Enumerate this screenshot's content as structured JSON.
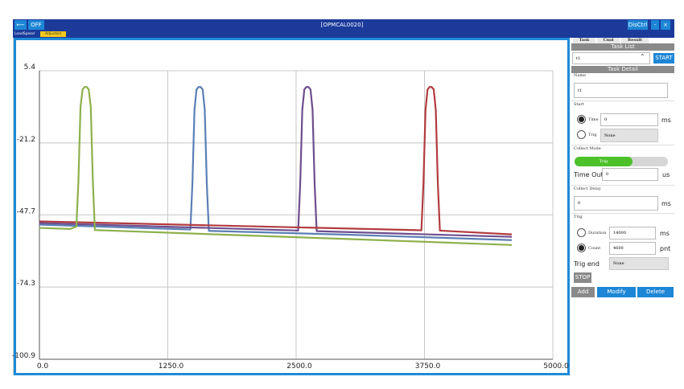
{
  "window": {
    "title": "[OPMCAL0020]",
    "power": "OFF",
    "disctrl": "DisCtrl",
    "minimize": "-",
    "close": "×"
  },
  "toolbar": {
    "tabs": [
      "LoadSpeed",
      "Adjusted"
    ]
  },
  "chart_data": {
    "type": "line",
    "xlim": [
      0,
      5000
    ],
    "xticks": [
      {
        "value": 0,
        "label": "0.0"
      },
      {
        "value": 1250,
        "label": "1250.0"
      },
      {
        "value": 2500,
        "label": "2500.0"
      },
      {
        "value": 3750,
        "label": "3750.0"
      },
      {
        "value": 5000,
        "label": "5000.0"
      }
    ],
    "ylim": [
      -100.9,
      5.4
    ],
    "yticks": [
      5.4,
      -21.2,
      -47.7,
      -74.3,
      -100.9
    ],
    "grid": true,
    "series": [
      {
        "color": "#5b7fb5",
        "x": [
          0,
          1400,
          1470,
          1490,
          1510,
          1530,
          1550,
          1570,
          1590,
          1610,
          1630,
          1650,
          3000,
          4600
        ],
        "values": [
          -51.3,
          -53.0,
          -53.1,
          -36,
          -9,
          -1.5,
          -0.6,
          -0.6,
          -1.5,
          -9,
          -36,
          -53.6,
          -55.0,
          -57.0
        ]
      },
      {
        "color": "#6d4e8e",
        "x": [
          0,
          2450,
          2520,
          2540,
          2560,
          2580,
          2600,
          2620,
          2640,
          2660,
          2680,
          2700,
          4600
        ],
        "values": [
          -50.7,
          -53.4,
          -53.5,
          -36,
          -9,
          -1.5,
          -0.6,
          -0.6,
          -1.5,
          -9,
          -36,
          -53.7,
          -55.8
        ]
      },
      {
        "color": "#b23b3f",
        "x": [
          0,
          3650,
          3720,
          3740,
          3760,
          3780,
          3800,
          3820,
          3840,
          3860,
          3880,
          3900,
          4600
        ],
        "values": [
          -50.1,
          -53.3,
          -53.4,
          -36,
          -9,
          -1.5,
          -0.6,
          -0.6,
          -1.5,
          -9,
          -36,
          -53.5,
          -54.9
        ]
      },
      {
        "color": "#8db04c",
        "x": [
          0,
          300,
          360,
          380,
          400,
          420,
          440,
          460,
          480,
          500,
          520,
          540,
          1500,
          3000,
          4600
        ],
        "values": [
          -52.5,
          -52.9,
          -52.0,
          -35,
          -8,
          -1.5,
          -0.6,
          -0.6,
          -1.5,
          -8,
          -35,
          -53.3,
          -54.6,
          -56.6,
          -58.8
        ]
      }
    ]
  },
  "panel": {
    "tabs": [
      "Task",
      "Cmd",
      "Result"
    ],
    "task_list": "Task List",
    "task_select": "t1",
    "start": "START",
    "task_detail": "Task Detail",
    "name_label": "Name",
    "name_value": "t1",
    "start_label": "Start",
    "time_label": "Time",
    "time_value": "0",
    "time_unit": "ms",
    "trig_label": "Trig",
    "trig_value": "None",
    "collect_mode": "Collect Mode",
    "mode_value": "Trig",
    "timeout_label": "Time Out",
    "timeout_value": "0",
    "timeout_unit": "us",
    "collect_delay": "Collect Delay",
    "delay_value": "0",
    "delay_unit": "ms",
    "trig_section": "Trig",
    "duration_label": "Duration",
    "duration_value": "14000",
    "duration_unit": "ms",
    "count_label": "Count",
    "count_value": "4600",
    "count_unit": "pnt",
    "trig_end_label": "Trig end",
    "trig_end_value": "None",
    "stop": "STOP",
    "add": "Add",
    "modify": "Modify",
    "delete": "Delete"
  }
}
